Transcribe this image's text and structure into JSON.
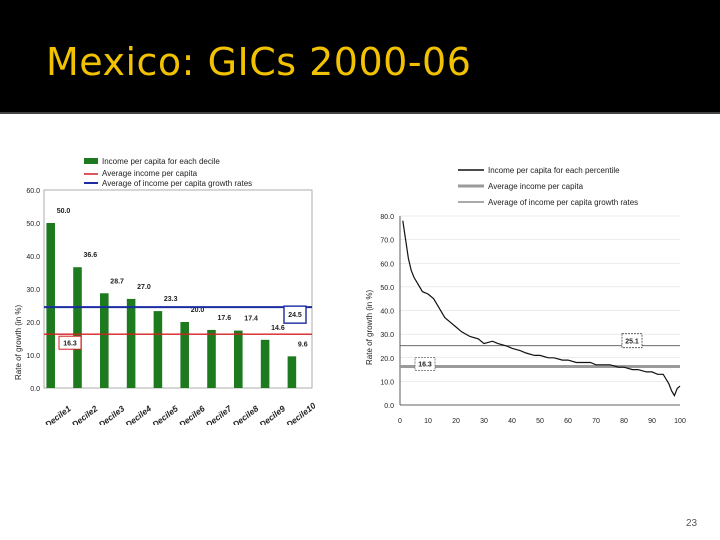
{
  "slide": {
    "title": "Mexico: GICs 2000-06",
    "page_number": "23"
  },
  "colors": {
    "bars": "#1e7a1e",
    "avg_income": "#d42020",
    "avg_growth": "#1a2ca0",
    "percentile_line": "#111111",
    "avg_gray": "#9a9a9a"
  },
  "chart_data": [
    {
      "type": "bar",
      "ylabel": "Rate of growth (in %)",
      "ylim": [
        0,
        60
      ],
      "yticks": [
        "0.0",
        "10.0",
        "20.0",
        "30.0",
        "40.0",
        "50.0",
        "60.0"
      ],
      "categories": [
        "Decile1",
        "Decile2",
        "Decile3",
        "Decile4",
        "Decile5",
        "Decile6",
        "Decile7",
        "Decile8",
        "Decile9",
        "Decile10"
      ],
      "values": [
        50.0,
        36.6,
        28.7,
        27.0,
        23.3,
        20.0,
        17.6,
        17.4,
        14.6,
        9.6
      ],
      "value_labels": [
        "50.0",
        "36.6",
        "28.7",
        "27.0",
        "23.3",
        "20.0",
        "17.6",
        "17.4",
        "14.6",
        "9.6"
      ],
      "legend": [
        "Income per capita for each decile",
        "Average income per capita",
        "Average of income per capita growth rates"
      ],
      "avg_income": 16.3,
      "avg_income_label": "16.3",
      "avg_growth": 24.5,
      "avg_growth_label": "24.5",
      "legend_position": "top"
    },
    {
      "type": "line",
      "ylabel": "Rate of growth (in %)",
      "ylim": [
        0,
        80
      ],
      "xlim": [
        0,
        100
      ],
      "yticks": [
        "0.0",
        "10.0",
        "20.0",
        "30.0",
        "40.0",
        "50.0",
        "60.0",
        "70.0",
        "80.0"
      ],
      "xticks": [
        "0",
        "10",
        "20",
        "30",
        "40",
        "50",
        "60",
        "70",
        "80",
        "90",
        "100"
      ],
      "legend": [
        "Income per capita for each percentile",
        "Average income per capita",
        "Average of income per capita growth rates"
      ],
      "x": [
        1,
        2,
        3,
        4,
        5,
        6,
        8,
        10,
        12,
        14,
        16,
        18,
        20,
        22,
        25,
        28,
        30,
        33,
        35,
        38,
        40,
        43,
        45,
        48,
        50,
        53,
        55,
        58,
        60,
        63,
        65,
        68,
        70,
        73,
        75,
        78,
        80,
        83,
        85,
        88,
        90,
        92,
        94,
        95,
        96,
        97,
        98,
        99,
        100
      ],
      "y": [
        78,
        70,
        62,
        57,
        54,
        52,
        48,
        47,
        45,
        41,
        37,
        35,
        33,
        31,
        29,
        28,
        26,
        27,
        26,
        25,
        24,
        23,
        22,
        21,
        21,
        20,
        20,
        19,
        19,
        18,
        18,
        18,
        17,
        17,
        17,
        16,
        16,
        15,
        15,
        14,
        14,
        13,
        13,
        11,
        9,
        6,
        4,
        7,
        8
      ],
      "avg_income": 16.3,
      "avg_income_label": "16.3",
      "avg_growth": 25.1,
      "avg_growth_label": "25.1",
      "legend_position": "top-right"
    }
  ]
}
